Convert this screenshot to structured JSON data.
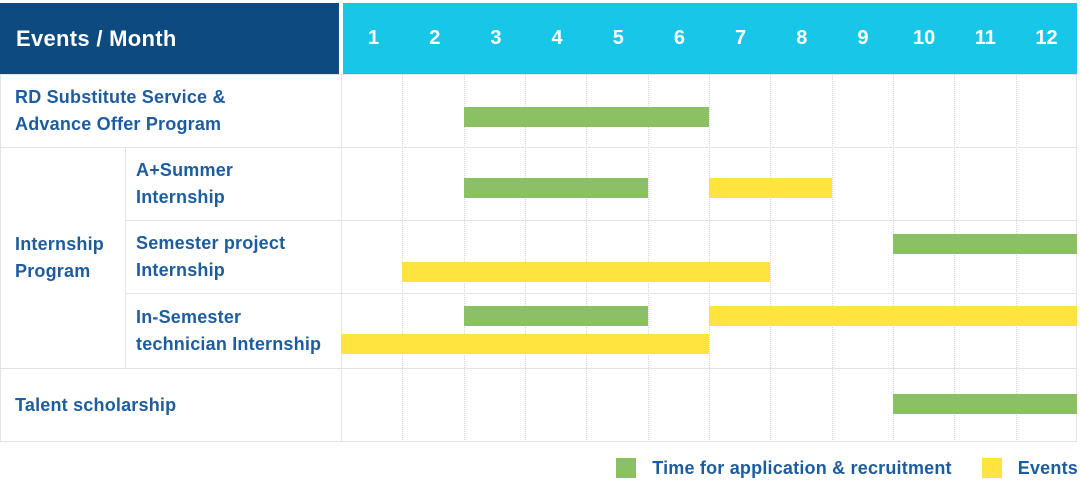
{
  "page": {
    "corner_label": "Events / Month"
  },
  "colors": {
    "header_navy": "#0d4a80",
    "header_cyan": "#18c6e8",
    "bar_green": "#8bc164",
    "bar_yellow": "#ffe33e",
    "text_blue": "#1d5c9e",
    "grid_dotted": "#d6d6d6",
    "grid_solid": "#e3e3e3"
  },
  "legend": {
    "items": [
      {
        "series": "Time for application & recruitment",
        "swatch": "green"
      },
      {
        "series": "Events",
        "swatch": "yellow"
      }
    ]
  },
  "chart_data": {
    "type": "gantt",
    "title": "",
    "x_axis": {
      "label": "Month",
      "ticks": [
        "1",
        "2",
        "3",
        "4",
        "5",
        "6",
        "7",
        "8",
        "9",
        "10",
        "11",
        "12"
      ],
      "range": [
        1,
        12
      ]
    },
    "legend_position": "bottom-right",
    "grid": "dotted-vertical",
    "legend": [
      {
        "name": "Time for application & recruitment",
        "color": "#8bc164"
      },
      {
        "name": "Events",
        "color": "#ffe33e"
      }
    ],
    "group_label": {
      "text": "Internship Program",
      "label_lines": [
        "Internship",
        "Program"
      ]
    },
    "rows": [
      {
        "category": "RD Substitute Service & Advance Offer Program",
        "label_lines": [
          "RD Substitute Service &",
          "Advance Offer Program"
        ],
        "group": "",
        "bars": [
          {
            "series": "Time for application & recruitment",
            "color": "#8bc164",
            "start_month": 3,
            "end_month": 6,
            "track": "single"
          }
        ]
      },
      {
        "category": "A+Summer Internship",
        "label_lines": [
          "A+Summer",
          "Internship"
        ],
        "group": "Internship Program",
        "bars": [
          {
            "series": "Time for application & recruitment",
            "color": "#8bc164",
            "start_month": 3,
            "end_month": 5,
            "track": "single"
          },
          {
            "series": "Events",
            "color": "#ffe33e",
            "start_month": 7,
            "end_month": 8,
            "track": "single"
          }
        ]
      },
      {
        "category": "Semester project Internship",
        "label_lines": [
          "Semester project",
          "Internship"
        ],
        "group": "Internship Program",
        "bars": [
          {
            "series": "Time for application & recruitment",
            "color": "#8bc164",
            "start_month": 10,
            "end_month": 12,
            "track": "upper"
          },
          {
            "series": "Events",
            "color": "#ffe33e",
            "start_month": 2,
            "end_month": 7,
            "track": "lower"
          }
        ]
      },
      {
        "category": "In-Semester technician Internship",
        "label_lines": [
          "In-Semester",
          "technician Internship"
        ],
        "group": "Internship Program",
        "bars": [
          {
            "series": "Time for application & recruitment",
            "color": "#8bc164",
            "start_month": 3,
            "end_month": 5,
            "track": "upper"
          },
          {
            "series": "Events",
            "color": "#ffe33e",
            "start_month": 7,
            "end_month": 12,
            "track": "upper"
          },
          {
            "series": "Events",
            "color": "#ffe33e",
            "start_month": 1,
            "end_month": 6,
            "track": "lower"
          }
        ]
      },
      {
        "category": "Talent scholarship",
        "label_lines": [
          "Talent scholarship"
        ],
        "group": "",
        "bars": [
          {
            "series": "Time for application & recruitment",
            "color": "#8bc164",
            "start_month": 10,
            "end_month": 12,
            "track": "single"
          }
        ]
      }
    ]
  }
}
